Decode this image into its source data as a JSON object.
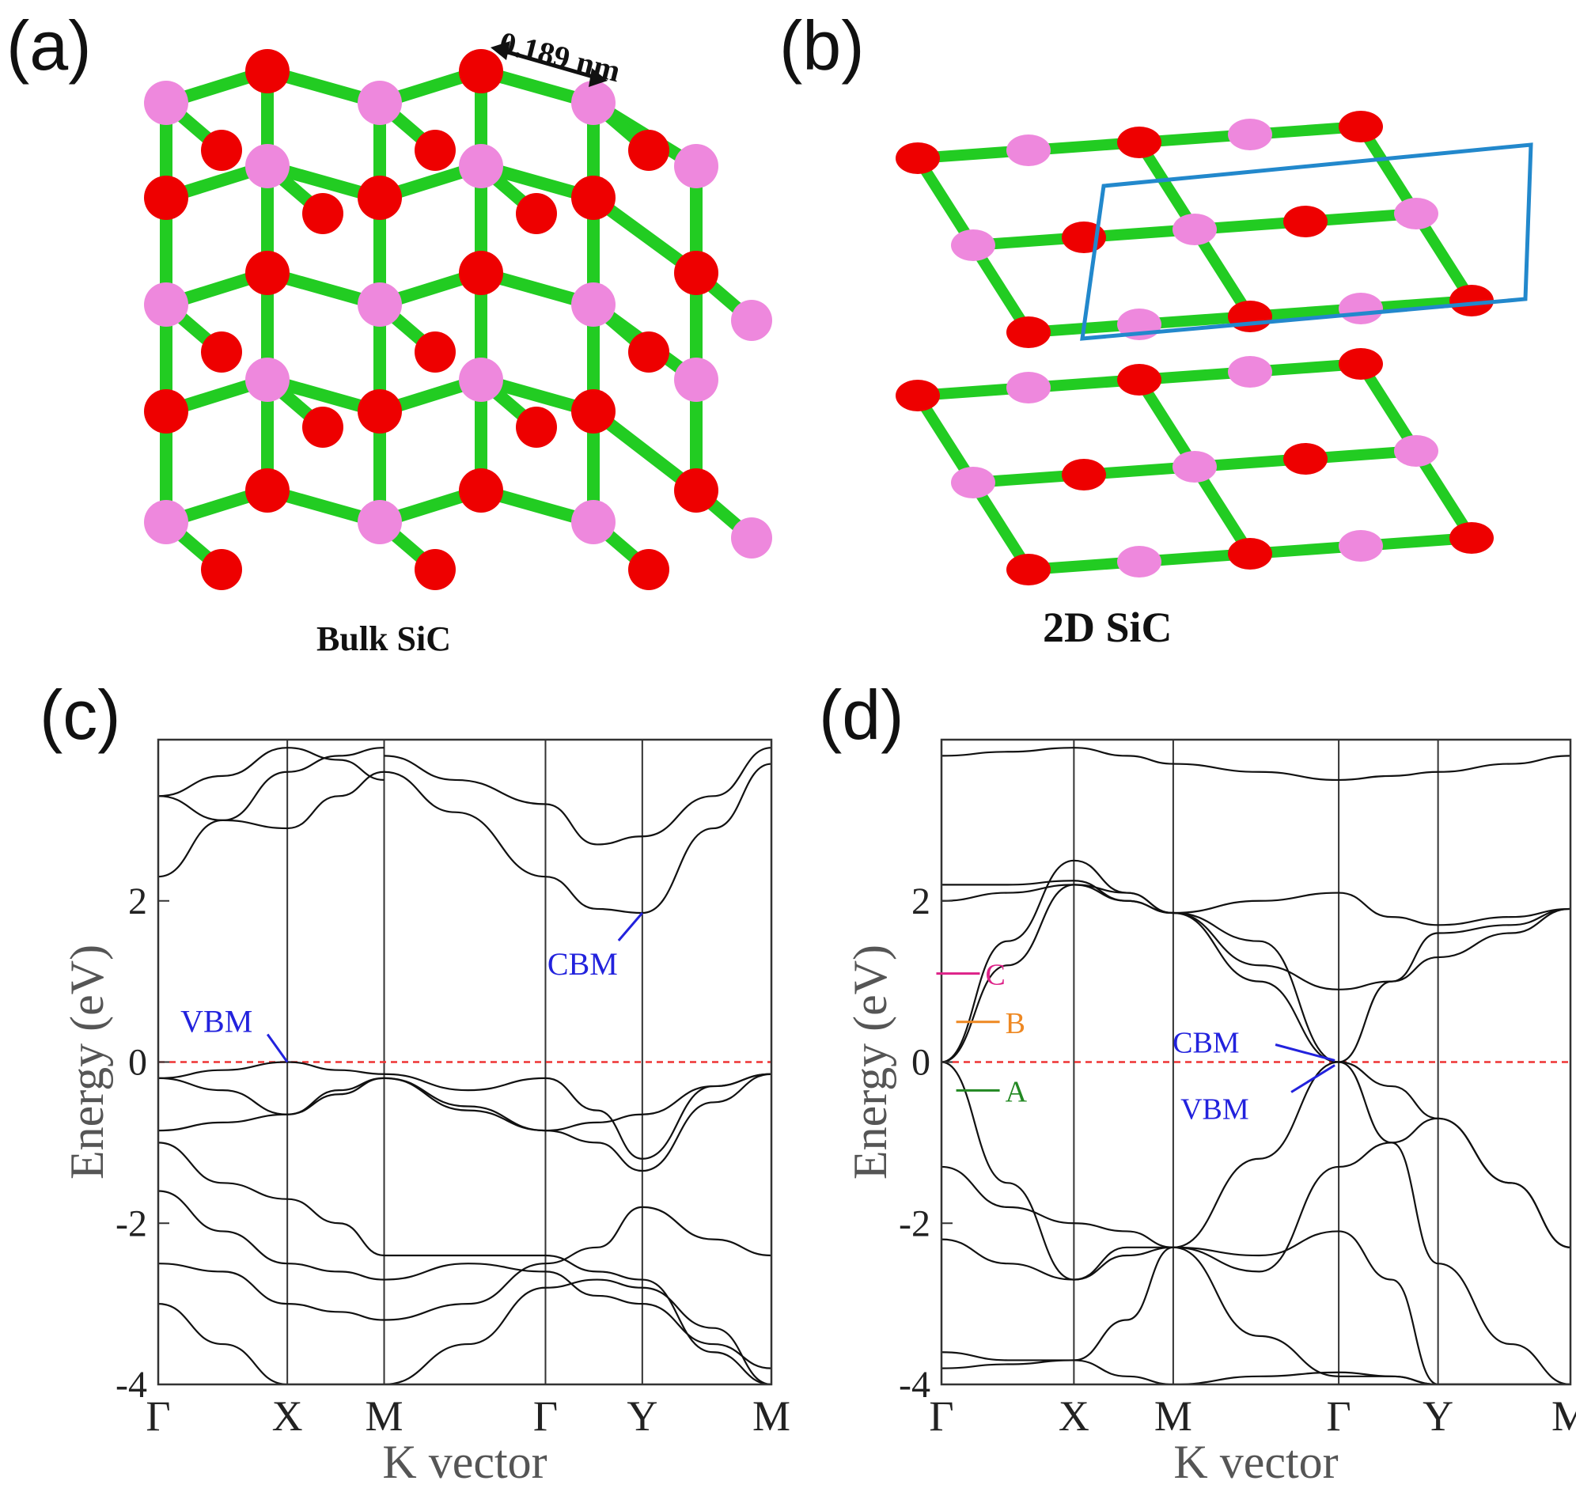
{
  "panels": {
    "a": {
      "letter": "(a)",
      "caption": "Bulk SiC",
      "bond_length": "0.189 nm"
    },
    "b": {
      "letter": "(b)",
      "caption": "2D SiC"
    },
    "c": {
      "letter": "(c)"
    },
    "d": {
      "letter": "(d)"
    }
  },
  "colors": {
    "si": "#ee88dd",
    "c_atom": "#ee0000",
    "bond": "#22cc22",
    "cell": "#2288cc",
    "fermi": "#ee3333",
    "band": "#111111"
  },
  "chart_data": [
    {
      "type": "line",
      "panel": "c",
      "xlabel": "K vector",
      "ylabel": "Energy (eV)",
      "ylim": [
        -4,
        4
      ],
      "yticks": [
        2,
        0,
        -2,
        -4
      ],
      "kpoints": [
        {
          "label": "Γ",
          "x": 0
        },
        {
          "label": "X",
          "x": 1
        },
        {
          "label": "M",
          "x": 1.75
        },
        {
          "label": "Γ",
          "x": 3
        },
        {
          "label": "Y",
          "x": 3.75
        },
        {
          "label": "M",
          "x": 4.75
        }
      ],
      "fermi_level": 0,
      "annotations": [
        {
          "text": "VBM",
          "x": 1.0,
          "y": 0.0,
          "color": "#2222dd"
        },
        {
          "text": "CBM",
          "x": 3.75,
          "y": 1.85,
          "color": "#2222dd"
        }
      ],
      "series": [
        {
          "x": [
            0,
            0.5,
            1,
            1.4,
            1.75
          ],
          "y": [
            3.3,
            3.55,
            3.9,
            3.75,
            3.5
          ]
        },
        {
          "x": [
            0,
            0.5,
            1,
            1.4,
            1.75
          ],
          "y": [
            3.3,
            3.0,
            2.9,
            3.3,
            3.6
          ]
        },
        {
          "x": [
            0,
            0.5,
            1,
            1.4,
            1.75
          ],
          "y": [
            2.3,
            3.0,
            3.6,
            3.8,
            3.9
          ]
        },
        {
          "x": [
            1.75,
            2.3,
            3,
            3.4,
            3.75,
            4.3,
            4.75
          ],
          "y": [
            3.6,
            3.1,
            2.3,
            1.9,
            1.85,
            2.9,
            3.7
          ]
        },
        {
          "x": [
            1.75,
            2.3,
            3,
            3.4,
            3.75,
            4.3,
            4.75
          ],
          "y": [
            3.8,
            3.5,
            3.2,
            2.7,
            2.8,
            3.3,
            3.9
          ]
        },
        {
          "x": [
            0,
            0.5,
            1,
            1.4,
            1.75,
            2.4,
            3,
            3.4,
            3.75,
            4.3,
            4.75
          ],
          "y": [
            -0.2,
            -0.1,
            0.0,
            -0.1,
            -0.15,
            -0.35,
            -0.2,
            -0.6,
            -1.2,
            -0.3,
            -0.15
          ]
        },
        {
          "x": [
            0,
            0.5,
            1,
            1.4,
            1.75,
            2.4,
            3,
            3.4,
            3.75,
            4.3,
            4.75
          ],
          "y": [
            -0.2,
            -0.35,
            -0.65,
            -0.35,
            -0.2,
            -0.6,
            -0.85,
            -1.0,
            -1.35,
            -0.5,
            -0.15
          ]
        },
        {
          "x": [
            0,
            0.5,
            1,
            1.4,
            1.75,
            2.4,
            3,
            3.4,
            3.75,
            4.3,
            4.75
          ],
          "y": [
            -0.85,
            -0.75,
            -0.65,
            -0.4,
            -0.2,
            -0.55,
            -0.85,
            -0.75,
            -0.65,
            -0.3,
            -0.15
          ]
        },
        {
          "x": [
            0,
            0.5,
            1,
            1.4,
            1.75,
            2.4,
            3,
            3.4,
            3.75,
            4.3,
            4.75
          ],
          "y": [
            -1.0,
            -1.5,
            -1.7,
            -2.0,
            -2.4,
            -2.4,
            -2.4,
            -2.6,
            -2.7,
            -3.6,
            -4.0
          ]
        },
        {
          "x": [
            0,
            0.5,
            1,
            1.4,
            1.75,
            2.4,
            3,
            3.4,
            3.75,
            4.3,
            4.75
          ],
          "y": [
            -1.6,
            -2.1,
            -2.5,
            -2.6,
            -2.7,
            -2.5,
            -2.6,
            -2.9,
            -3.0,
            -3.5,
            -3.8
          ]
        },
        {
          "x": [
            0,
            0.5,
            1,
            1.4,
            1.75,
            2.4,
            3,
            3.4,
            3.75,
            4.3,
            4.75
          ],
          "y": [
            -2.5,
            -2.6,
            -3.0,
            -3.1,
            -3.2,
            -3.0,
            -2.5,
            -2.3,
            -1.8,
            -2.2,
            -2.4
          ]
        },
        {
          "x": [
            0,
            0.5,
            1,
            1.4,
            1.75,
            2.4,
            3,
            3.4,
            3.75,
            4.3,
            4.75
          ],
          "y": [
            -3.0,
            -3.5,
            -4.0,
            -4.0,
            -4.0,
            -3.5,
            -2.8,
            -2.7,
            -2.8,
            -3.3,
            -4.0
          ]
        }
      ]
    },
    {
      "type": "line",
      "panel": "d",
      "xlabel": "K vector",
      "ylabel": "Energy (eV)",
      "ylim": [
        -4,
        4
      ],
      "yticks": [
        2,
        0,
        -2,
        -4
      ],
      "kpoints": [
        {
          "label": "Γ",
          "x": 0
        },
        {
          "label": "X",
          "x": 1
        },
        {
          "label": "M",
          "x": 1.75
        },
        {
          "label": "Γ",
          "x": 3
        },
        {
          "label": "Y",
          "x": 3.75
        },
        {
          "label": "M",
          "x": 4.75
        }
      ],
      "fermi_level": 0,
      "annotations": [
        {
          "text": "C",
          "x": 0.2,
          "y": 1.0,
          "color": "#dd2288"
        },
        {
          "text": "B",
          "x": 0.35,
          "y": 0.4,
          "color": "#ee8822"
        },
        {
          "text": "A",
          "x": 0.35,
          "y": -0.45,
          "color": "#228822"
        },
        {
          "text": "CBM",
          "x": 3.0,
          "y": 0.0,
          "color": "#2222dd"
        },
        {
          "text": "VBM",
          "x": 3.0,
          "y": 0.0,
          "color": "#2222dd"
        }
      ],
      "series": [
        {
          "x": [
            0,
            0.5,
            1,
            1.4,
            1.75,
            2.4,
            3,
            3.4,
            3.75,
            4.3,
            4.75
          ],
          "y": [
            3.8,
            3.85,
            3.9,
            3.8,
            3.7,
            3.6,
            3.5,
            3.55,
            3.6,
            3.7,
            3.8
          ]
        },
        {
          "x": [
            0,
            0.5,
            1,
            1.4,
            1.75,
            2.4,
            3,
            3.4,
            3.75,
            4.3,
            4.75
          ],
          "y": [
            0.0,
            1.2,
            2.2,
            2.0,
            1.85,
            1.2,
            0.9,
            1.0,
            1.6,
            1.7,
            1.9
          ]
        },
        {
          "x": [
            0,
            0.5,
            1,
            1.4,
            1.75,
            2.4,
            3,
            3.4,
            3.75,
            4.3,
            4.75
          ],
          "y": [
            0.0,
            1.5,
            2.5,
            2.1,
            1.85,
            2.0,
            2.1,
            1.8,
            1.7,
            1.8,
            1.9
          ]
        },
        {
          "x": [
            0,
            0.5,
            1,
            1.4,
            1.75,
            2.4,
            3,
            3.4,
            3.75,
            4.3,
            4.75
          ],
          "y": [
            2.2,
            2.2,
            2.25,
            2.0,
            1.85,
            1.5,
            0.0,
            1.0,
            1.3,
            1.6,
            1.9
          ]
        },
        {
          "x": [
            0,
            0.5,
            1,
            1.4,
            1.75,
            2.4,
            3,
            3.4,
            3.75,
            4.3,
            4.75
          ],
          "y": [
            2.0,
            2.1,
            2.2,
            2.1,
            1.85,
            1.0,
            0.0,
            -0.3,
            -0.7,
            -1.5,
            -2.3
          ]
        },
        {
          "x": [
            0,
            0.5,
            1,
            1.4,
            1.75,
            2.4,
            3,
            3.4,
            3.75,
            4.3,
            4.75
          ],
          "y": [
            0.0,
            -1.5,
            -2.7,
            -2.4,
            -2.3,
            -1.2,
            0.0,
            -1.0,
            -2.5,
            -3.5,
            -4.0
          ]
        },
        {
          "x": [
            0,
            0.5,
            1,
            1.4,
            1.75,
            2.4,
            3,
            3.4,
            3.75,
            4.3,
            4.75
          ],
          "y": [
            -1.3,
            -1.8,
            -2.0,
            -2.1,
            -2.3,
            -2.4,
            -2.1,
            -2.7,
            -4.0,
            -4.0,
            -4.0
          ]
        },
        {
          "x": [
            0,
            0.5,
            1,
            1.4,
            1.75,
            2.4,
            3,
            3.4,
            3.75,
            4.3,
            4.75
          ],
          "y": [
            -2.2,
            -2.5,
            -2.7,
            -2.3,
            -2.3,
            -2.6,
            -1.3,
            -1.0,
            -0.7,
            -1.5,
            -2.3
          ]
        },
        {
          "x": [
            0,
            0.5,
            1,
            1.4,
            1.75,
            2.4,
            3,
            3.4,
            3.75,
            4.3,
            4.75
          ],
          "y": [
            -3.6,
            -3.7,
            -3.7,
            -3.2,
            -2.3,
            -3.4,
            -3.9,
            -3.9,
            -4.0,
            -4.0,
            -4.0
          ]
        },
        {
          "x": [
            0,
            0.5,
            1,
            1.4,
            1.75,
            2.4,
            3,
            3.4,
            3.75,
            4.3,
            4.75
          ],
          "y": [
            -3.8,
            -3.75,
            -3.7,
            -3.9,
            -4.0,
            -3.9,
            -3.85,
            -3.9,
            -4.0,
            -4.0,
            -4.0
          ]
        }
      ]
    }
  ]
}
